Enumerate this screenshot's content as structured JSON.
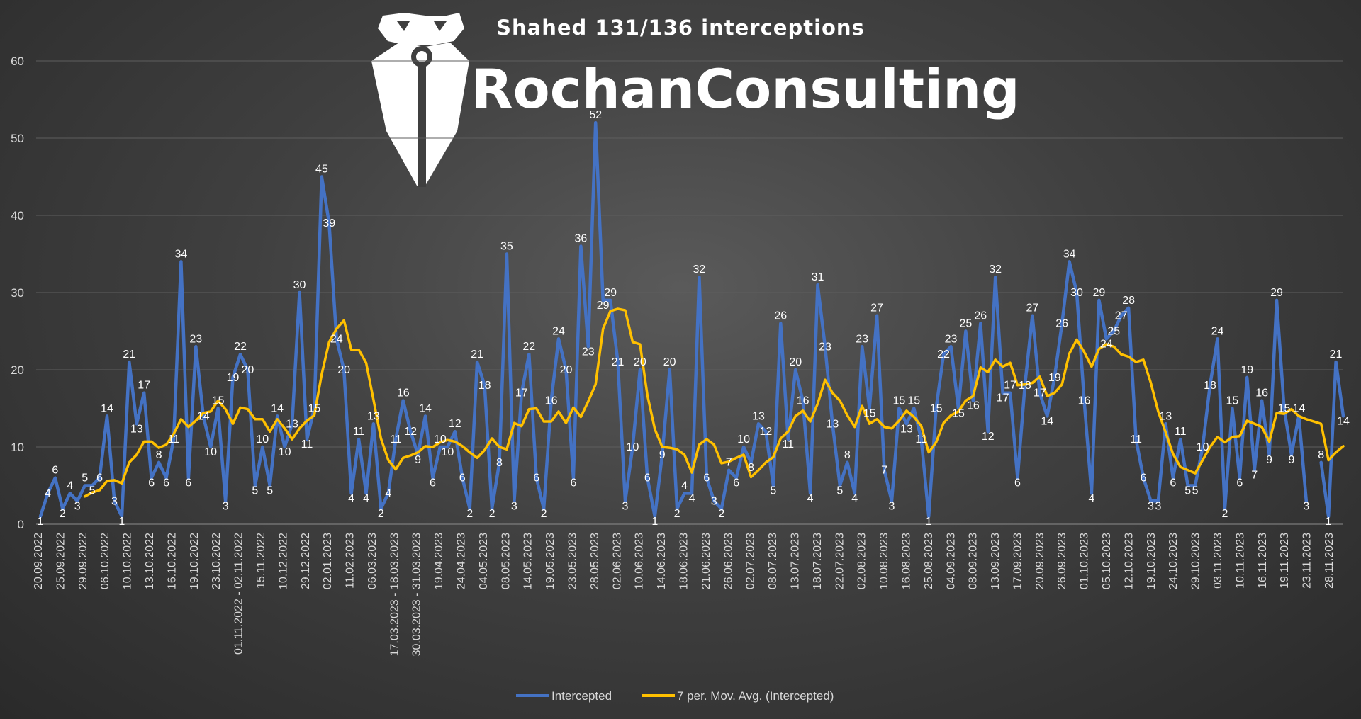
{
  "logo": {
    "text": "RochanConsulting"
  },
  "chart_data": {
    "type": "line",
    "title": "Shahed 131/136 interceptions",
    "xlabel": "",
    "ylabel": "",
    "ylim": [
      0,
      60
    ],
    "yticks": [
      0,
      10,
      20,
      30,
      40,
      50,
      60
    ],
    "grid": true,
    "legend_position": "bottom",
    "x_tick_labels": [
      "20.09.2022",
      "25.09.2022",
      "29.09.2022",
      "06.10.2022",
      "10.10.2022",
      "13.10.2022",
      "16.10.2022",
      "19.10.2022",
      "23.10.2022",
      "01.11.2022 - 02.11.2022",
      "15.11.2022",
      "10.12.2022",
      "29.12.2022",
      "02.01.2023",
      "11.02.2023",
      "06.03.2023",
      "17.03.2023 - 18.03.2023",
      "30.03.2023 - 31.03.2023",
      "19.04.2023",
      "24.04.2023",
      "04.05.2023",
      "08.05.2023",
      "14.05.2023",
      "19.05.2023",
      "23.05.2023",
      "28.05.2023",
      "02.06.2023",
      "10.06.2023",
      "14.06.2023",
      "18.06.2023",
      "21.06.2023",
      "26.06.2023",
      "02.07.2023",
      "08.07.2023",
      "13.07.2023",
      "18.07.2023",
      "22.07.2023",
      "02.08.2023",
      "10.08.2023",
      "16.08.2023",
      "25.08.2023",
      "04.09.2023",
      "08.09.2023",
      "13.09.2023",
      "17.09.2023",
      "20.09.2023",
      "26.09.2023",
      "01.10.2023",
      "05.10.2023",
      "12.10.2023",
      "19.10.2023",
      "24.10.2023",
      "29.10.2023",
      "03.11.2023",
      "10.11.2023",
      "16.11.2023",
      "19.11.2023",
      "23.11.2023",
      "28.11.2023"
    ],
    "series": [
      {
        "name": "Intercepted",
        "color": "#4472c4",
        "values": [
          1,
          4,
          6,
          2,
          4,
          3,
          5,
          5,
          6,
          14,
          3,
          1,
          21,
          13,
          17,
          6,
          8,
          6,
          11,
          34,
          6,
          23,
          14,
          10,
          15,
          3,
          19,
          22,
          20,
          5,
          10,
          5,
          14,
          10,
          13,
          30,
          11,
          15,
          45,
          39,
          24,
          20,
          4,
          11,
          4,
          13,
          2,
          4,
          11,
          16,
          12,
          9,
          14,
          6,
          10,
          10,
          12,
          6,
          2,
          21,
          18,
          2,
          8,
          35,
          3,
          17,
          22,
          6,
          2,
          16,
          24,
          20,
          6,
          36,
          23,
          52,
          29,
          29,
          21,
          3,
          10,
          20,
          6,
          1,
          9,
          20,
          2,
          4,
          4,
          32,
          6,
          3,
          2,
          7,
          6,
          10,
          8,
          13,
          12,
          5,
          26,
          11,
          20,
          16,
          4,
          31,
          23,
          13,
          5,
          8,
          4,
          23,
          15,
          27,
          7,
          3,
          15,
          13,
          15,
          11,
          1,
          15,
          22,
          23,
          15,
          25,
          16,
          26,
          12,
          32,
          17,
          17,
          6,
          18,
          27,
          17,
          14,
          19,
          26,
          34,
          30,
          16,
          4,
          29,
          24,
          25,
          27,
          28,
          11,
          6,
          3,
          3,
          13,
          6,
          11,
          5,
          5,
          10,
          18,
          24,
          2,
          15,
          6,
          19,
          7,
          16,
          9,
          29,
          15,
          9,
          14,
          3,
          null,
          8,
          1,
          21,
          14
        ]
      },
      {
        "name": "7 per. Mov. Avg. (Intercepted)",
        "color": "#ffc000",
        "values": [
          null,
          null,
          null,
          null,
          null,
          null,
          3.6,
          4.1,
          4.4,
          5.6,
          5.7,
          5.3,
          8,
          9.0,
          10.7,
          10.7,
          9.9,
          10.3,
          11.7,
          13.6,
          12.6,
          13.4,
          14.4,
          14.6,
          16,
          14.9,
          13.0,
          15.1,
          14.9,
          13.6,
          13.6,
          12.0,
          13.6,
          12.4,
          11.0,
          12.4,
          13.4,
          14.1,
          19.4,
          23.6,
          25.3,
          26.4,
          22.6,
          22.6,
          20.9,
          16.1,
          11.1,
          8.3,
          7.1,
          8.6,
          8.9,
          9.3,
          10.1,
          10.0,
          10.6,
          10.9,
          10.7,
          10.1,
          9.3,
          8.6,
          9.6,
          11.1,
          10.0,
          9.7,
          13.1,
          12.7,
          14.9,
          15,
          13.3,
          13.3,
          14.6,
          13.1,
          15.1,
          13.9,
          15.9,
          18.1,
          25.3,
          27.6,
          27.9,
          27.7,
          23.6,
          23.3,
          16.7,
          12.3,
          10.0,
          9.9,
          9.7,
          9.0,
          6.7,
          10.3,
          11.0,
          10.3,
          7.9,
          8.1,
          8.6,
          9.0,
          6.1,
          7.0,
          8.0,
          8.7,
          11.1,
          12.0,
          14.0,
          14.7,
          13.3,
          15.6,
          18.7,
          17.0,
          16.0,
          14.1,
          12.6,
          15.3,
          13.0,
          13.6,
          12.6,
          12.4,
          13.4,
          14.7,
          13.9,
          12.7,
          9.3,
          10.6,
          13.1,
          14.1,
          14.6,
          16.0,
          16.6,
          20.3,
          19.7,
          21.3,
          20.4,
          20.9,
          18.0,
          18.1,
          18.3,
          19.1,
          16.6,
          17.0,
          18.1,
          22.1,
          23.9,
          22.3,
          20.4,
          22.7,
          23.3,
          23.0,
          22.0,
          21.7,
          21.0,
          21.3,
          18.3,
          14.6,
          11.9,
          9.1,
          7.4,
          7.0,
          6.6,
          8.3,
          10.0,
          11.3,
          10.6,
          11.3,
          11.4,
          13.4,
          13.0,
          12.6,
          10.7,
          14.4,
          14.3,
          14.9,
          14.0,
          13.6,
          13.3,
          13.0,
          8.3,
          9.3,
          10.1
        ]
      }
    ]
  }
}
